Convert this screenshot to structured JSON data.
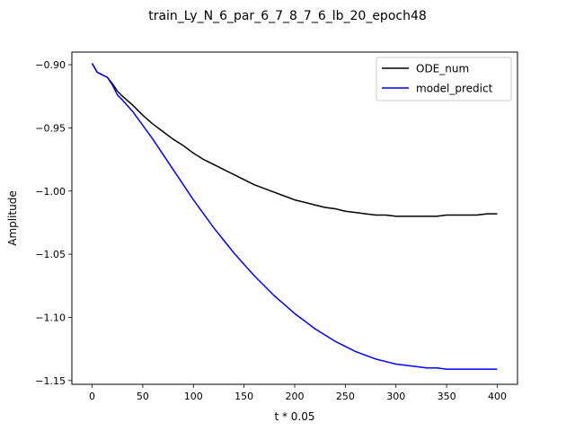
{
  "chart_data": {
    "type": "line",
    "title": "train_Ly_N_6_par_6_7_8_7_6_lb_20_epoch48",
    "xlabel": "t * 0.05",
    "ylabel": "Amplitude",
    "xlim": [
      -20,
      420
    ],
    "ylim": [
      -1.153,
      -0.89
    ],
    "xticks": [
      0,
      50,
      100,
      150,
      200,
      250,
      300,
      350,
      400
    ],
    "xtick_labels": [
      "0",
      "50",
      "100",
      "150",
      "200",
      "250",
      "300",
      "350",
      "400"
    ],
    "yticks": [
      -0.9,
      -0.95,
      -1.0,
      -1.05,
      -1.1,
      -1.15
    ],
    "ytick_labels": [
      "−0.90",
      "−0.95",
      "−1.00",
      "−1.05",
      "−1.10",
      "−1.15"
    ],
    "grid": false,
    "legend_position": "upper right",
    "series": [
      {
        "name": "ODE_num",
        "color": "#000000",
        "x": [
          0,
          5,
          10,
          15,
          20,
          25,
          30,
          40,
          50,
          60,
          70,
          80,
          90,
          100,
          110,
          120,
          130,
          140,
          150,
          160,
          170,
          180,
          190,
          200,
          210,
          220,
          230,
          240,
          250,
          260,
          270,
          280,
          290,
          300,
          310,
          320,
          330,
          340,
          350,
          360,
          370,
          380,
          390,
          400
        ],
        "y": [
          -0.899,
          -0.906,
          -0.908,
          -0.91,
          -0.915,
          -0.921,
          -0.925,
          -0.932,
          -0.94,
          -0.947,
          -0.953,
          -0.959,
          -0.964,
          -0.97,
          -0.975,
          -0.979,
          -0.983,
          -0.987,
          -0.991,
          -0.995,
          -0.998,
          -1.001,
          -1.004,
          -1.007,
          -1.009,
          -1.011,
          -1.013,
          -1.014,
          -1.016,
          -1.017,
          -1.018,
          -1.019,
          -1.019,
          -1.02,
          -1.02,
          -1.02,
          -1.02,
          -1.02,
          -1.019,
          -1.019,
          -1.019,
          -1.019,
          -1.018,
          -1.018
        ]
      },
      {
        "name": "model_predict",
        "color": "#0000ff",
        "x": [
          0,
          5,
          10,
          15,
          20,
          25,
          30,
          40,
          50,
          60,
          70,
          80,
          90,
          100,
          110,
          120,
          130,
          140,
          150,
          160,
          170,
          180,
          190,
          200,
          210,
          220,
          230,
          240,
          250,
          260,
          270,
          280,
          290,
          300,
          310,
          320,
          330,
          340,
          350,
          360,
          370,
          380,
          390,
          400
        ],
        "y": [
          -0.899,
          -0.906,
          -0.908,
          -0.91,
          -0.916,
          -0.924,
          -0.928,
          -0.937,
          -0.948,
          -0.959,
          -0.971,
          -0.983,
          -0.995,
          -1.007,
          -1.018,
          -1.029,
          -1.039,
          -1.049,
          -1.058,
          -1.067,
          -1.075,
          -1.083,
          -1.09,
          -1.097,
          -1.103,
          -1.109,
          -1.114,
          -1.119,
          -1.123,
          -1.127,
          -1.13,
          -1.133,
          -1.135,
          -1.137,
          -1.138,
          -1.139,
          -1.14,
          -1.14,
          -1.141,
          -1.141,
          -1.141,
          -1.141,
          -1.141,
          -1.141
        ]
      }
    ]
  }
}
